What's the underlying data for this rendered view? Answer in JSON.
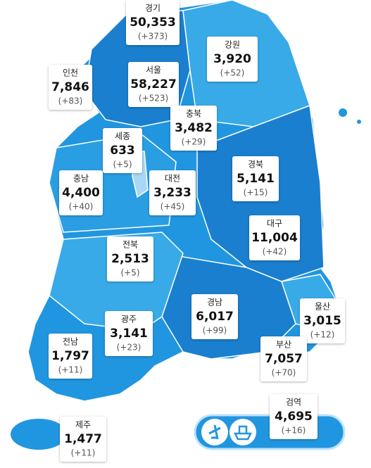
{
  "regions": [
    {
      "name": "경기",
      "total": "50,353",
      "change": "(+373)"
    },
    {
      "name": "강원",
      "total": "3,920",
      "change": "(+52)"
    },
    {
      "name": "인천",
      "total": "7,846",
      "change": "(+83)"
    },
    {
      "name": "서울",
      "total": "58,227",
      "change": "(+523)"
    },
    {
      "name": "충북",
      "total": "3,482",
      "change": "(+29)"
    },
    {
      "name": "세종",
      "total": "633",
      "change": "(+5)"
    },
    {
      "name": "충남",
      "total": "4,400",
      "change": "(+40)"
    },
    {
      "name": "대전",
      "total": "3,233",
      "change": "(+45)"
    },
    {
      "name": "경북",
      "total": "5,141",
      "change": "(+15)"
    },
    {
      "name": "대구",
      "total": "11,004",
      "change": "(+42)"
    },
    {
      "name": "전북",
      "total": "2,513",
      "change": "(+5)"
    },
    {
      "name": "경남",
      "total": "6,017",
      "change": "(+99)"
    },
    {
      "name": "울산",
      "total": "3,015",
      "change": "(+12)"
    },
    {
      "name": "광주",
      "total": "3,141",
      "change": "(+23)"
    },
    {
      "name": "전남",
      "total": "1,797",
      "change": "(+11)"
    },
    {
      "name": "부산",
      "total": "7,057",
      "change": "(+70)"
    },
    {
      "name": "검역",
      "total": "4,695",
      "change": "(+16)"
    },
    {
      "name": "제주",
      "total": "1,477",
      "change": "(+11)"
    }
  ]
}
